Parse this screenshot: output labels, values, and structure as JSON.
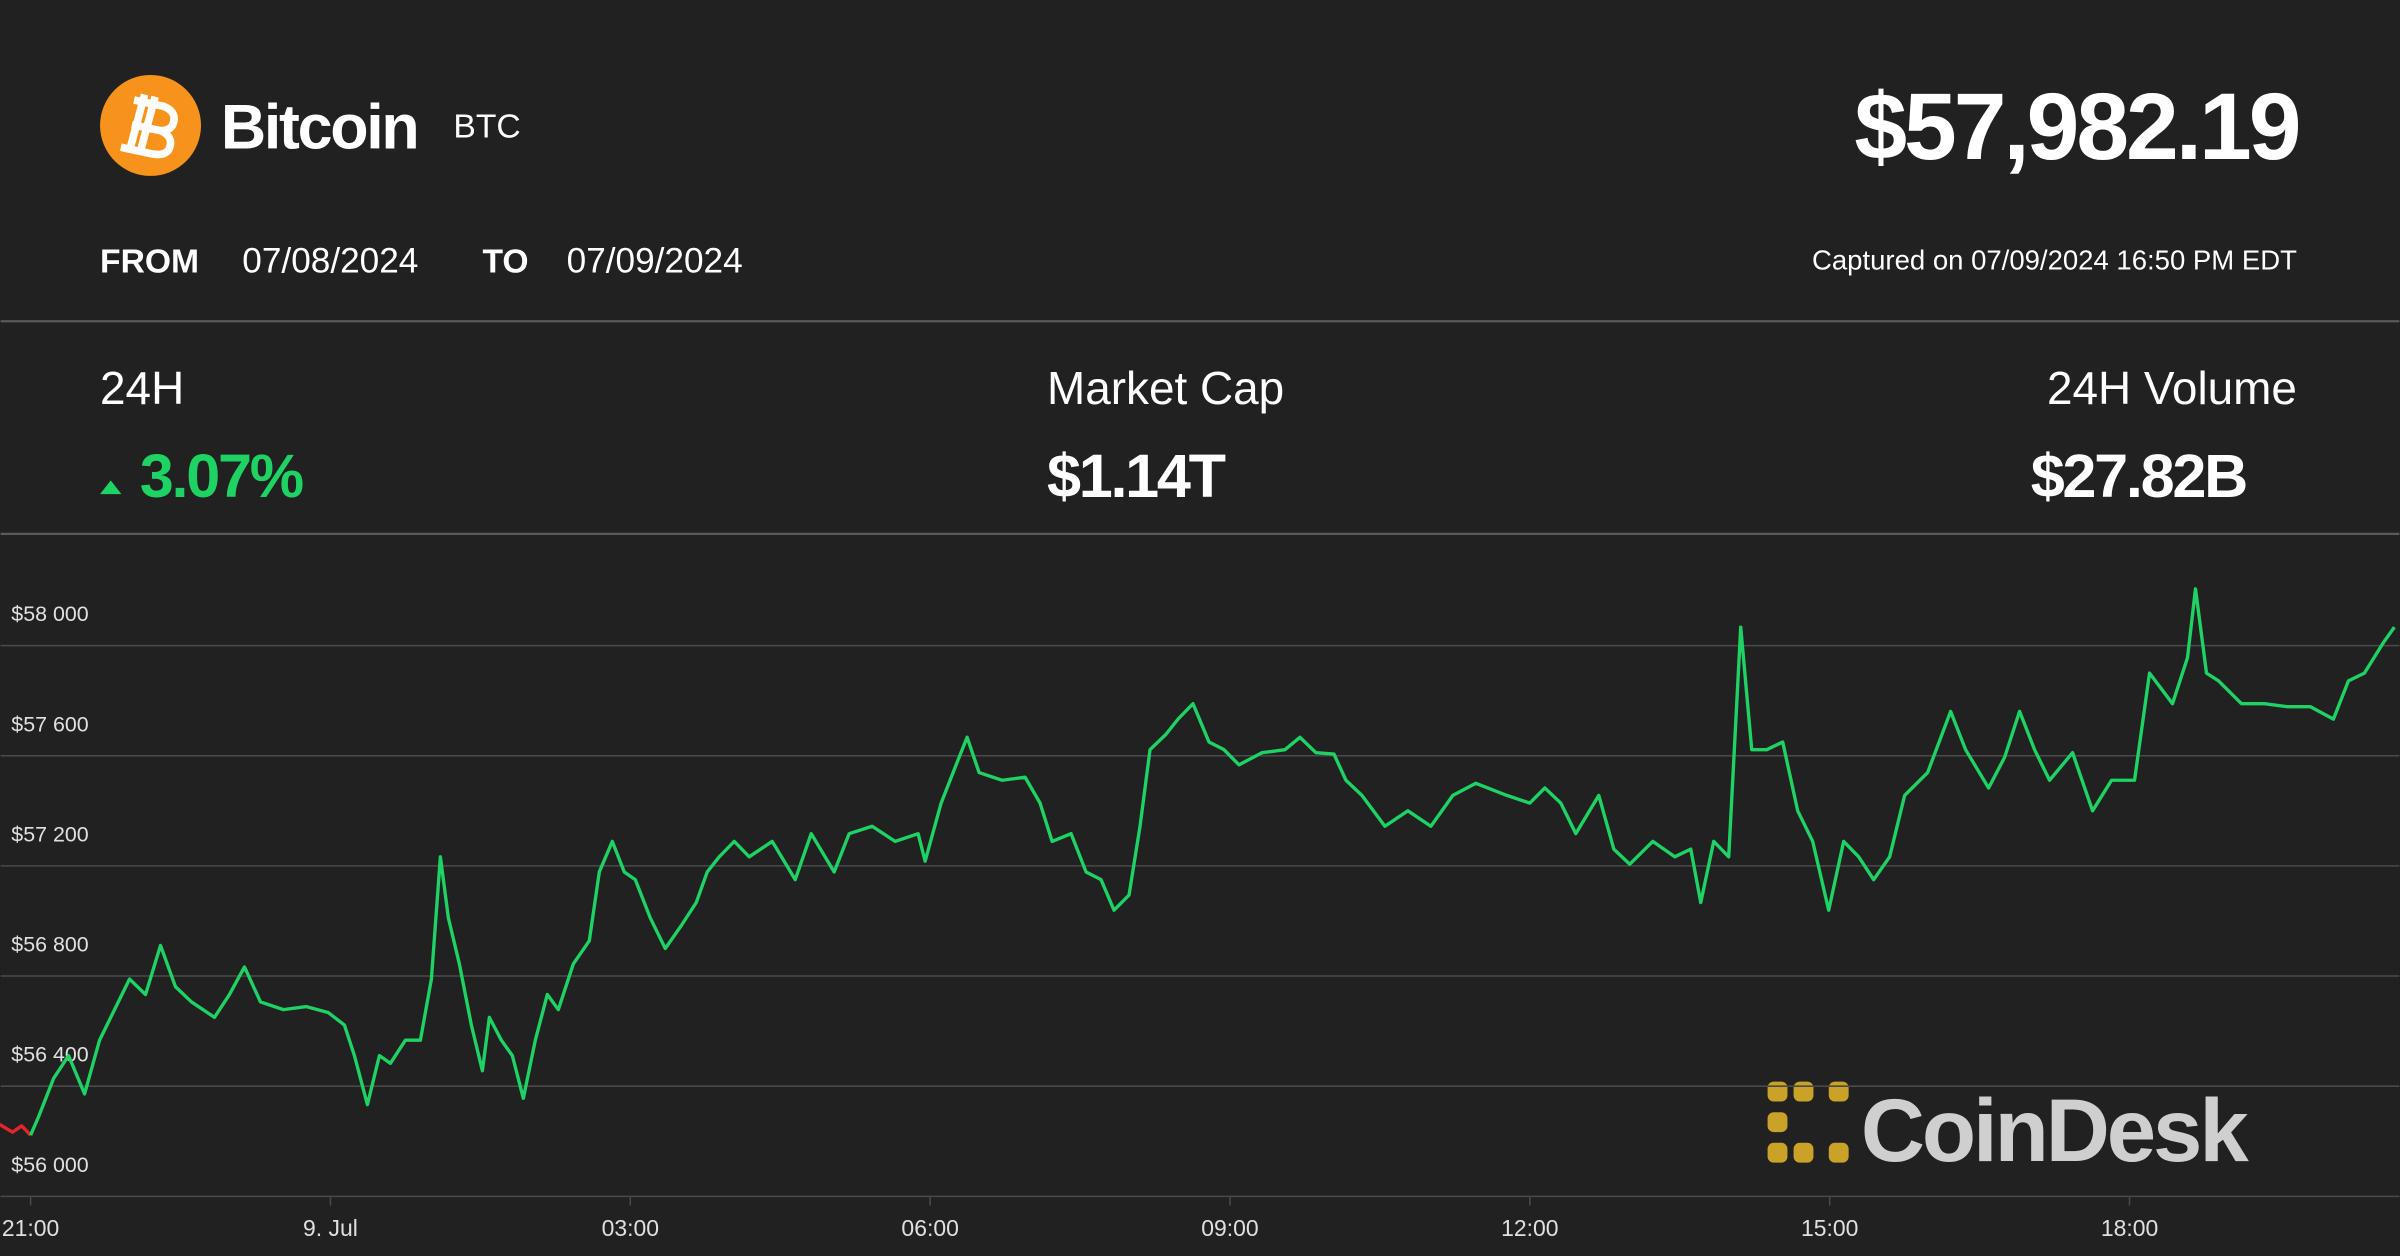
{
  "header": {
    "name": "Bitcoin",
    "symbol": "BTC",
    "price": "$57,982.19",
    "from_label": "FROM",
    "from_date": "07/08/2024",
    "to_label": "TO",
    "to_date": "07/09/2024",
    "captured": "Captured on 07/09/2024 16:50 PM EDT"
  },
  "stats": [
    {
      "label": "24H",
      "value": "3.07%"
    },
    {
      "label": "Market Cap",
      "value": "$1.14T"
    },
    {
      "label": "24H Volume",
      "value": "$27.82B"
    }
  ],
  "watermark": "CoinDesk",
  "chart_data": {
    "type": "line",
    "xlim": [
      -0.3,
      23.7
    ],
    "xticks": [
      {
        "value": 0,
        "label": "21:00"
      },
      {
        "value": 3,
        "label": "9. Jul"
      },
      {
        "value": 6,
        "label": "03:00"
      },
      {
        "value": 9,
        "label": "06:00"
      },
      {
        "value": 12,
        "label": "09:00"
      },
      {
        "value": 15,
        "label": "12:00"
      },
      {
        "value": 18,
        "label": "15:00"
      },
      {
        "value": 21,
        "label": "18:00"
      }
    ],
    "ylim": [
      56000,
      58400
    ],
    "yticks": [
      {
        "value": 56000,
        "label": "$56 000"
      },
      {
        "value": 56400,
        "label": "$56 400"
      },
      {
        "value": 56800,
        "label": "$56 800"
      },
      {
        "value": 57200,
        "label": "$57 200"
      },
      {
        "value": 57600,
        "label": "$57 600"
      },
      {
        "value": 58000,
        "label": "$58 000"
      }
    ],
    "grid": true,
    "series": [
      {
        "color": "#e3262b",
        "x": [
          -0.31,
          -0.18,
          -0.09,
          0
        ],
        "values": [
          56261,
          56233,
          56256,
          56222
        ]
      },
      {
        "color": "#1fd264",
        "x": [
          0,
          0.08,
          0.23,
          0.38,
          0.54,
          0.69,
          0.84,
          0.99,
          1.15,
          1.3,
          1.45,
          1.61,
          1.84,
          1.99,
          2.14,
          2.3,
          2.53,
          2.76,
          2.98,
          3.14,
          3.24,
          3.37,
          3.49,
          3.6,
          3.75,
          3.9,
          4.01,
          4.1,
          4.18,
          4.29,
          4.41,
          4.52,
          4.59,
          4.71,
          4.82,
          4.93,
          5.05,
          5.17,
          5.28,
          5.43,
          5.59,
          5.69,
          5.82,
          5.94,
          6.05,
          6.2,
          6.35,
          6.51,
          6.66,
          6.77,
          6.89,
          7.04,
          7.19,
          7.42,
          7.65,
          7.81,
          8.04,
          8.19,
          8.42,
          8.65,
          8.88,
          8.95,
          9.11,
          9.26,
          9.37,
          9.49,
          9.72,
          9.95,
          10.1,
          10.22,
          10.41,
          10.56,
          10.71,
          10.84,
          10.99,
          11.1,
          11.2,
          11.36,
          11.48,
          11.63,
          11.79,
          11.94,
          12.09,
          12.32,
          12.55,
          12.7,
          12.86,
          13.04,
          13.16,
          13.32,
          13.55,
          13.78,
          14.01,
          14.23,
          14.46,
          14.77,
          15,
          15.15,
          15.31,
          15.46,
          15.69,
          15.84,
          16,
          16.23,
          16.45,
          16.61,
          16.71,
          16.84,
          16.99,
          17.11,
          17.22,
          17.37,
          17.53,
          17.68,
          17.83,
          17.99,
          18.14,
          18.29,
          18.44,
          18.6,
          18.75,
          18.98,
          19.21,
          19.36,
          19.59,
          19.75,
          19.9,
          20.05,
          20.2,
          20.43,
          20.63,
          20.82,
          21.05,
          21.2,
          21.43,
          21.58,
          21.66,
          21.77,
          21.89,
          22.12,
          22.35,
          22.58,
          22.81,
          23.04,
          23.19,
          23.35,
          23.54,
          23.65
        ],
        "values": [
          56222,
          56289,
          56428,
          56511,
          56372,
          56567,
          56678,
          56789,
          56733,
          56911,
          56761,
          56706,
          56650,
          56733,
          56833,
          56706,
          56678,
          56689,
          56667,
          56622,
          56511,
          56333,
          56511,
          56483,
          56567,
          56567,
          56789,
          57233,
          57011,
          56844,
          56622,
          56456,
          56650,
          56567,
          56511,
          56356,
          56567,
          56733,
          56678,
          56844,
          56928,
          57178,
          57289,
          57178,
          57150,
          57011,
          56900,
          56983,
          57067,
          57178,
          57233,
          57289,
          57233,
          57289,
          57150,
          57317,
          57178,
          57317,
          57344,
          57289,
          57317,
          57217,
          57428,
          57567,
          57667,
          57539,
          57511,
          57522,
          57428,
          57289,
          57317,
          57178,
          57150,
          57039,
          57094,
          57344,
          57622,
          57678,
          57733,
          57789,
          57650,
          57622,
          57567,
          57611,
          57622,
          57667,
          57611,
          57606,
          57511,
          57456,
          57344,
          57400,
          57344,
          57456,
          57500,
          57456,
          57428,
          57483,
          57428,
          57317,
          57456,
          57261,
          57206,
          57289,
          57233,
          57261,
          57067,
          57289,
          57233,
          58067,
          57622,
          57622,
          57650,
          57400,
          57289,
          57039,
          57289,
          57233,
          57150,
          57233,
          57456,
          57539,
          57761,
          57622,
          57483,
          57594,
          57761,
          57622,
          57511,
          57611,
          57400,
          57511,
          57511,
          57900,
          57789,
          57956,
          58206,
          57900,
          57872,
          57789,
          57789,
          57778,
          57778,
          57733,
          57872,
          57900,
          58011,
          58067
        ]
      }
    ]
  }
}
